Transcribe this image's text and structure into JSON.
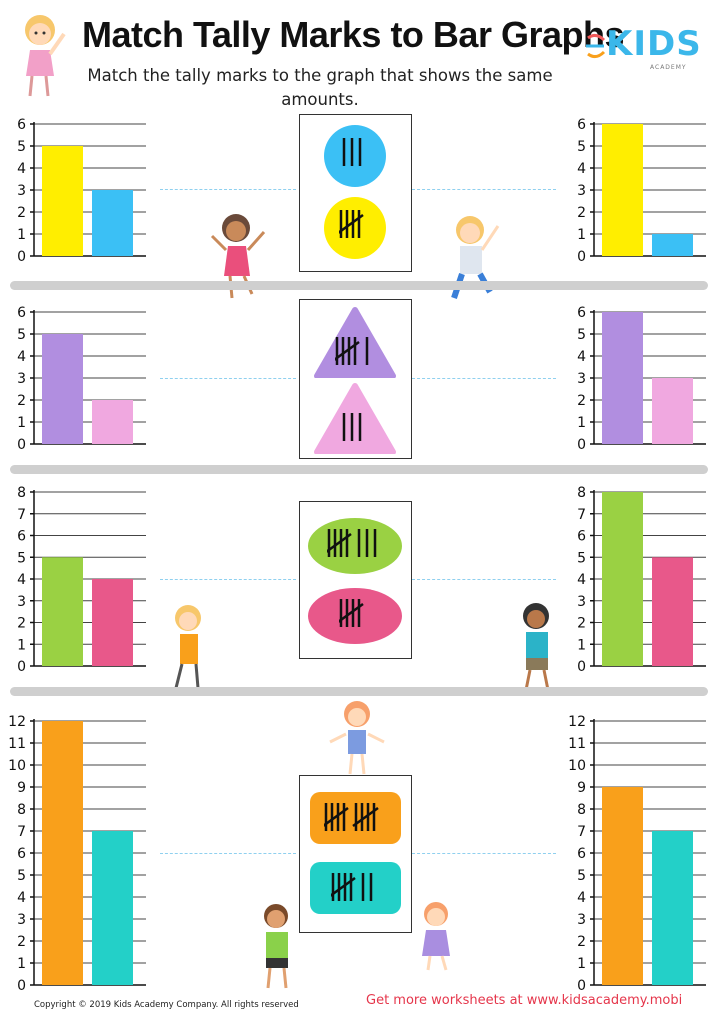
{
  "header": {
    "title": "Match Tally Marks to Bar Graphs",
    "subtitle": "Match the tally marks to the graph that shows the same amounts."
  },
  "logo": {
    "word": "KIDS",
    "sub": "ACADEMY"
  },
  "footer": {
    "copyright": "Copyright © 2019 Kids Academy Company. All rights reserved",
    "promo": "Get more worksheets at www.kidsacademy.mobi"
  },
  "colors": {
    "yellow": "#ffee00",
    "blue": "#3bc0f5",
    "purple": "#b18ee0",
    "pink": "#f0a8e0",
    "green": "#9ad143",
    "magenta": "#e8588a",
    "orange": "#f9a01b",
    "teal": "#23d0c8",
    "divider": "#cfcfcf",
    "promo": "#e5364b"
  },
  "chart_data": [
    {
      "type": "bar",
      "id": "r1-left",
      "ylim": [
        0,
        6
      ],
      "yticks": [
        0,
        1,
        2,
        3,
        4,
        5,
        6
      ],
      "values": [
        5,
        3
      ],
      "colors": [
        "#ffee00",
        "#3bc0f5"
      ]
    },
    {
      "type": "bar",
      "id": "r1-right",
      "ylim": [
        0,
        6
      ],
      "yticks": [
        0,
        1,
        2,
        3,
        4,
        5,
        6
      ],
      "values": [
        6,
        1
      ],
      "colors": [
        "#ffee00",
        "#3bc0f5"
      ]
    },
    {
      "type": "bar",
      "id": "r2-left",
      "ylim": [
        0,
        6
      ],
      "yticks": [
        0,
        1,
        2,
        3,
        4,
        5,
        6
      ],
      "values": [
        5,
        2
      ],
      "colors": [
        "#b18ee0",
        "#f0a8e0"
      ]
    },
    {
      "type": "bar",
      "id": "r2-right",
      "ylim": [
        0,
        6
      ],
      "yticks": [
        0,
        1,
        2,
        3,
        4,
        5,
        6
      ],
      "values": [
        6,
        3
      ],
      "colors": [
        "#b18ee0",
        "#f0a8e0"
      ]
    },
    {
      "type": "bar",
      "id": "r3-left",
      "ylim": [
        0,
        8
      ],
      "yticks": [
        0,
        1,
        2,
        3,
        4,
        5,
        6,
        7,
        8
      ],
      "values": [
        5,
        4
      ],
      "colors": [
        "#9ad143",
        "#e8588a"
      ]
    },
    {
      "type": "bar",
      "id": "r3-right",
      "ylim": [
        0,
        8
      ],
      "yticks": [
        0,
        1,
        2,
        3,
        4,
        5,
        6,
        7,
        8
      ],
      "values": [
        8,
        5
      ],
      "colors": [
        "#9ad143",
        "#e8588a"
      ]
    },
    {
      "type": "bar",
      "id": "r4-left",
      "ylim": [
        0,
        12
      ],
      "yticks": [
        0,
        1,
        2,
        3,
        4,
        5,
        6,
        7,
        8,
        9,
        10,
        11,
        12
      ],
      "values": [
        12,
        7
      ],
      "colors": [
        "#f9a01b",
        "#23d0c8"
      ]
    },
    {
      "type": "bar",
      "id": "r4-right",
      "ylim": [
        0,
        12
      ],
      "yticks": [
        0,
        1,
        2,
        3,
        4,
        5,
        6,
        7,
        8,
        9,
        10,
        11,
        12
      ],
      "values": [
        9,
        7
      ],
      "colors": [
        "#f9a01b",
        "#23d0c8"
      ]
    }
  ],
  "tallies": [
    {
      "items": [
        {
          "count": 3,
          "shape": "circle",
          "color": "#3bc0f5"
        },
        {
          "count": 5,
          "shape": "circle",
          "color": "#ffee00"
        }
      ]
    },
    {
      "items": [
        {
          "count": 6,
          "shape": "triangle",
          "color": "#b18ee0"
        },
        {
          "count": 3,
          "shape": "triangle",
          "color": "#f0a8e0"
        }
      ]
    },
    {
      "items": [
        {
          "count": 8,
          "shape": "ellipse",
          "color": "#9ad143"
        },
        {
          "count": 5,
          "shape": "ellipse",
          "color": "#e8588a"
        }
      ]
    },
    {
      "items": [
        {
          "count": 10,
          "shape": "rounded-rect",
          "color": "#f9a01b"
        },
        {
          "count": 7,
          "shape": "rounded-rect",
          "color": "#23d0c8"
        }
      ]
    }
  ]
}
